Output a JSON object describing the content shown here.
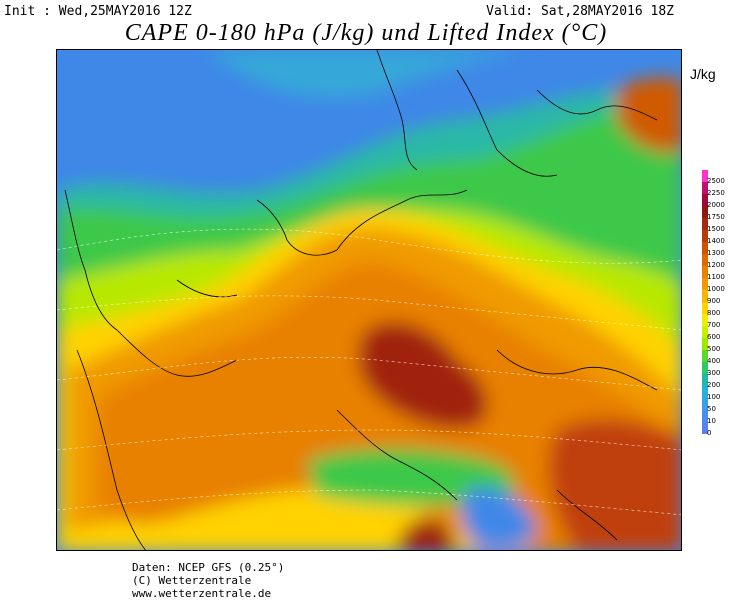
{
  "header": {
    "init": "Init : Wed,25MAY2016 12Z",
    "valid": "Valid: Sat,28MAY2016 18Z",
    "title": "CAPE 0-180 hPa (J/kg) und Lifted Index (°C)"
  },
  "legend": {
    "unit": "J/kg",
    "levels": [
      "2500",
      "2250",
      "2000",
      "1750",
      "1500",
      "1400",
      "1300",
      "1200",
      "1100",
      "1000",
      "900",
      "800",
      "700",
      "600",
      "500",
      "400",
      "300",
      "200",
      "100",
      "50",
      "10",
      "0"
    ],
    "colors": [
      "#ff33cc",
      "#c0106e",
      "#a00a3a",
      "#8c1a10",
      "#a52a10",
      "#b83a08",
      "#cc5500",
      "#dd6a00",
      "#e88000",
      "#f09a00",
      "#f5b800",
      "#ffd200",
      "#f0ee00",
      "#c8ee00",
      "#9fe800",
      "#5ad830",
      "#2ec868",
      "#20b8a8",
      "#28b0d8",
      "#3aa0e8",
      "#4a8ef0",
      "#5a80f0"
    ]
  },
  "footer": {
    "line1": "Daten: NCEP GFS (0.25°)",
    "line2": "(C) Wetterzentrale",
    "line3": "www.wetterzentrale.de"
  }
}
